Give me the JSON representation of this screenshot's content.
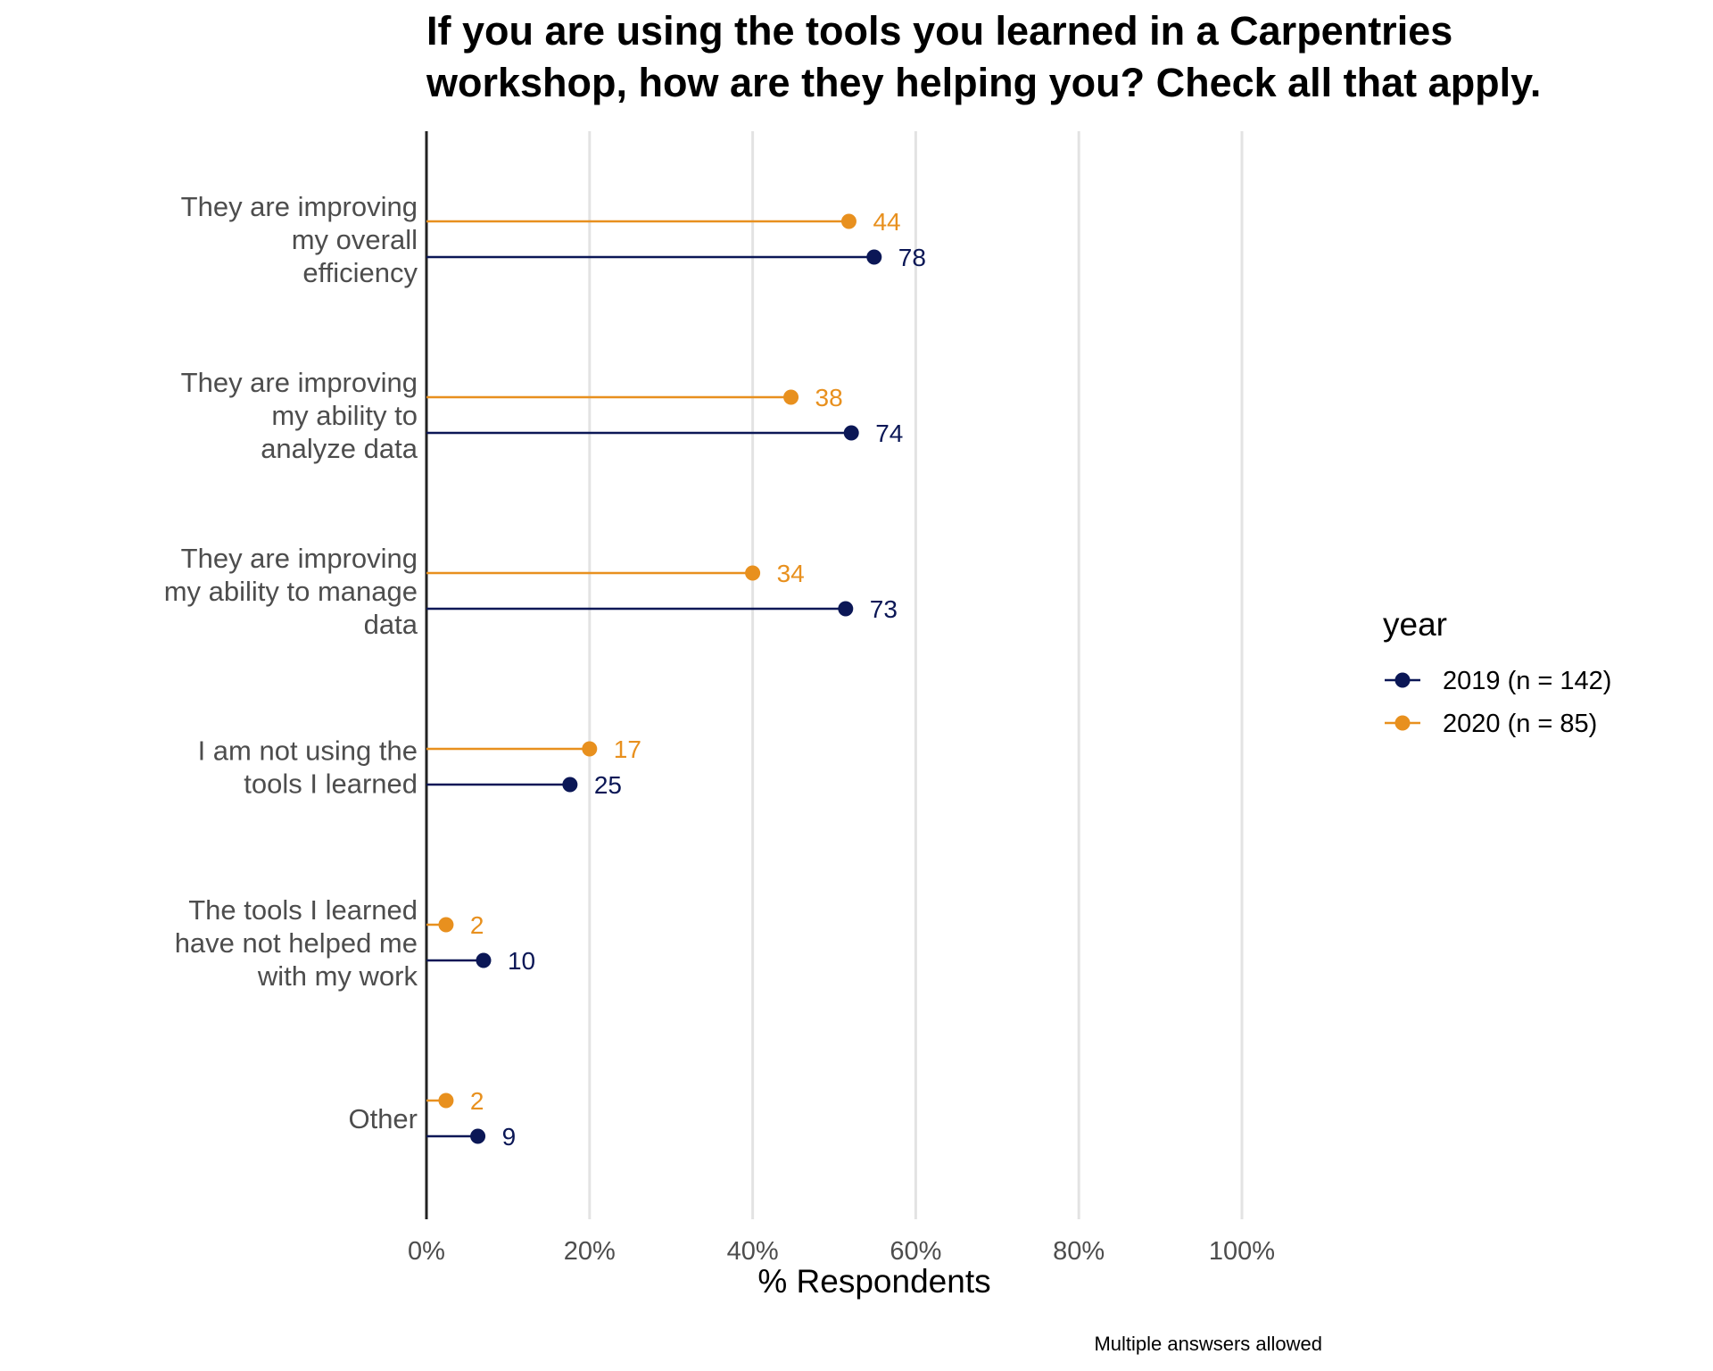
{
  "chart_data": {
    "type": "lollipop",
    "title": "If you are using the tools you learned in a Carpentries workshop, how are they helping you? Check all that apply.",
    "title_lines": [
      "If you are using the tools you learned in a Carpentries",
      "workshop, how are they helping you? Check all that apply."
    ],
    "xlabel": "% Respondents",
    "ylabel": "",
    "caption": "Multiple answsers allowed",
    "xlim": [
      0,
      100
    ],
    "x_ticks": [
      "0%",
      "20%",
      "40%",
      "60%",
      "80%",
      "100%"
    ],
    "grid": "vertical major gridlines",
    "legend_title": "year",
    "legend_position": "right",
    "categories": [
      "They are improving my overall efficiency",
      "They are improving my ability to analyze data",
      "They are improving my ability to manage data",
      "I am not using the tools I learned",
      "The tools I learned have not helped me with my work",
      "Other"
    ],
    "category_lines": [
      [
        "They are improving",
        "my overall",
        "efficiency"
      ],
      [
        "They are improving",
        "my ability to",
        "analyze data"
      ],
      [
        "They are improving",
        "my ability to manage",
        "data"
      ],
      [
        "I am not using the",
        "tools I learned"
      ],
      [
        "The tools I learned",
        "have not helped me",
        "with my work"
      ],
      [
        "Other"
      ]
    ],
    "series": [
      {
        "name": "2019 (n = 142)",
        "color": "#0b1756",
        "counts": [
          78,
          74,
          73,
          25,
          10,
          9
        ],
        "percent": [
          54.9,
          52.1,
          51.4,
          17.6,
          7.0,
          6.3
        ]
      },
      {
        "name": "2020 (n = 85)",
        "color": "#e8901e",
        "counts": [
          44,
          38,
          34,
          17,
          2,
          2
        ],
        "percent": [
          51.8,
          44.7,
          40.0,
          20.0,
          2.4,
          2.4
        ]
      }
    ]
  }
}
